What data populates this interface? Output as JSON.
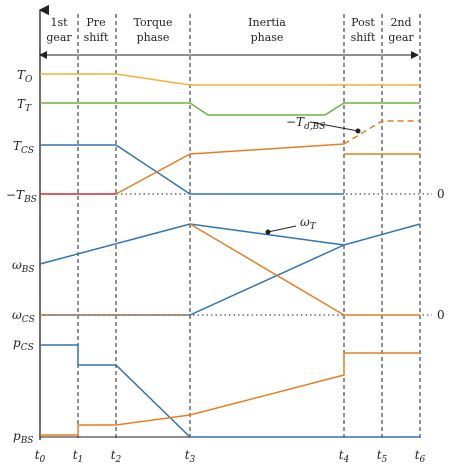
{
  "phases": [
    {
      "line1": "1st",
      "line2": "gear"
    },
    {
      "line1": "Pre",
      "line2": "shift"
    },
    {
      "line1": "Torque",
      "line2": "phase"
    },
    {
      "line1": "Inertia",
      "line2": "phase"
    },
    {
      "line1": "Post",
      "line2": "shift"
    },
    {
      "line1": "2nd",
      "line2": "gear"
    }
  ],
  "y_labels": {
    "To": {
      "main": "T",
      "sub": "O"
    },
    "Tt": {
      "main": "T",
      "sub": "T"
    },
    "Tcs": {
      "main": "T",
      "sub": "CS"
    },
    "Tbs": {
      "main": "−T",
      "sub": "BS"
    },
    "wbs": {
      "main": "ω",
      "sub": "BS"
    },
    "wcs": {
      "main": "ω",
      "sub": "CS"
    },
    "pcs": {
      "main": "p",
      "sub": "CS"
    },
    "pbs": {
      "main": "p",
      "sub": "BS"
    }
  },
  "time_ticks": [
    {
      "main": "t",
      "sub": "0"
    },
    {
      "main": "t",
      "sub": "1"
    },
    {
      "main": "t",
      "sub": "2"
    },
    {
      "main": "t",
      "sub": "3"
    },
    {
      "main": "t",
      "sub": "4"
    },
    {
      "main": "t",
      "sub": "5"
    },
    {
      "main": "t",
      "sub": "6"
    }
  ],
  "annotations": {
    "td_bs": {
      "main": "−T",
      "sub": "d,BS"
    },
    "omega_t": {
      "main": "ω",
      "sub": "T"
    },
    "zero_torque": "0",
    "zero_speed": "0"
  },
  "colors": {
    "orange": "#e67e22",
    "yellow": "#f2b233",
    "green": "#6cb33f",
    "blue": "#2e74b5",
    "red": "#d62728",
    "axis": "#222222"
  }
}
